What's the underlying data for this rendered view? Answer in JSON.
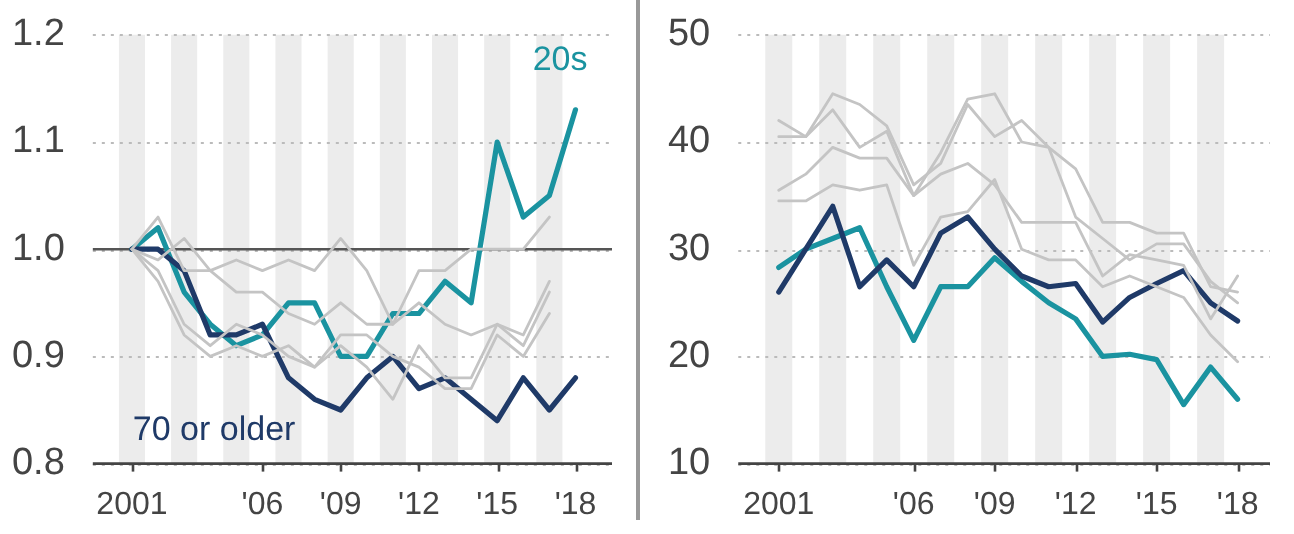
{
  "chart_data": [
    {
      "type": "line",
      "x": [
        2001,
        2002,
        2003,
        2004,
        2005,
        2006,
        2007,
        2008,
        2009,
        2010,
        2011,
        2012,
        2013,
        2014,
        2015,
        2016,
        2017,
        2018
      ],
      "series": [
        {
          "color": "#c4c4c4",
          "values": [
            1.0,
            1.03,
            0.98,
            0.98,
            0.99,
            0.98,
            0.99,
            0.98,
            1.01,
            0.98,
            0.93,
            0.98,
            0.98,
            1.0,
            1.0,
            1.0,
            1.03,
            null
          ]
        },
        {
          "color": "#c4c4c4",
          "values": [
            1.0,
            0.99,
            1.01,
            0.98,
            0.96,
            0.96,
            0.94,
            0.93,
            0.95,
            0.93,
            0.93,
            0.95,
            0.93,
            0.92,
            0.93,
            0.92,
            0.97,
            null
          ]
        },
        {
          "color": "#c4c4c4",
          "values": [
            1.0,
            0.98,
            0.93,
            0.91,
            0.93,
            0.92,
            0.9,
            0.89,
            0.91,
            0.89,
            0.86,
            0.91,
            0.88,
            0.88,
            0.93,
            0.91,
            0.96,
            null
          ]
        },
        {
          "color": "#c4c4c4",
          "values": [
            1.0,
            0.97,
            0.92,
            0.9,
            0.91,
            0.9,
            0.91,
            0.89,
            0.92,
            0.92,
            0.9,
            0.89,
            0.87,
            0.87,
            0.92,
            0.9,
            0.94,
            null
          ]
        },
        {
          "name": "70 or older",
          "color": "#1f3a68",
          "values": [
            1.0,
            1.0,
            0.98,
            0.92,
            0.92,
            0.93,
            0.88,
            0.86,
            0.85,
            0.88,
            0.9,
            0.87,
            0.88,
            0.86,
            0.84,
            0.88,
            0.85,
            0.88
          ]
        },
        {
          "name": "20s",
          "color": "#1a93a0",
          "values": [
            1.0,
            1.02,
            0.96,
            0.93,
            0.91,
            0.92,
            0.95,
            0.95,
            0.9,
            0.9,
            0.94,
            0.94,
            0.97,
            0.95,
            1.1,
            1.03,
            1.05,
            1.13
          ]
        }
      ],
      "xlim": [
        1999.5,
        2019.4
      ],
      "xticks": [
        {
          "value": 2001,
          "label": "2001"
        },
        {
          "value": 2006,
          "label": "'06"
        },
        {
          "value": 2009,
          "label": "'09"
        },
        {
          "value": 2012,
          "label": "'12"
        },
        {
          "value": 2015,
          "label": "'15"
        },
        {
          "value": 2018,
          "label": "'18"
        }
      ],
      "ylim": [
        0.8,
        1.2
      ],
      "yticks": [
        {
          "value": 0.8,
          "label": "0.8"
        },
        {
          "value": 0.9,
          "label": "0.9"
        },
        {
          "value": 1.0,
          "label": "1.0"
        },
        {
          "value": 1.1,
          "label": "1.1"
        },
        {
          "value": 1.2,
          "label": "1.2"
        }
      ],
      "ref_lines": [
        {
          "axis": "y",
          "value": 1.0,
          "color": "#555555"
        }
      ],
      "bands": [
        {
          "axis": "x",
          "from": 2000.5,
          "to": 2001.5,
          "color": "#ececec"
        },
        {
          "axis": "x",
          "from": 2002.5,
          "to": 2003.5,
          "color": "#ececec"
        },
        {
          "axis": "x",
          "from": 2004.5,
          "to": 2005.5,
          "color": "#ececec"
        },
        {
          "axis": "x",
          "from": 2006.5,
          "to": 2007.5,
          "color": "#ececec"
        },
        {
          "axis": "x",
          "from": 2008.5,
          "to": 2009.5,
          "color": "#ececec"
        },
        {
          "axis": "x",
          "from": 2010.5,
          "to": 2011.5,
          "color": "#ececec"
        },
        {
          "axis": "x",
          "from": 2012.5,
          "to": 2013.5,
          "color": "#ececec"
        },
        {
          "axis": "x",
          "from": 2014.5,
          "to": 2015.5,
          "color": "#ececec"
        },
        {
          "axis": "x",
          "from": 2016.5,
          "to": 2017.5,
          "color": "#ececec"
        }
      ],
      "grid": "y",
      "legend": false,
      "marker": "none",
      "line_style": "solid"
    },
    {
      "type": "line",
      "x": [
        2001,
        2002,
        2003,
        2004,
        2005,
        2006,
        2007,
        2008,
        2009,
        2010,
        2011,
        2012,
        2013,
        2014,
        2015,
        2016,
        2017,
        2018
      ],
      "series": [
        {
          "color": "#c4c4c4",
          "values": [
            42,
            40.5,
            44.5,
            43.5,
            41.5,
            36,
            38,
            43.5,
            40.5,
            42,
            39.5,
            37.5,
            32.5,
            32.5,
            31.5,
            31.5,
            26.5,
            26
          ]
        },
        {
          "color": "#c4c4c4",
          "values": [
            40.5,
            40.5,
            43,
            39.5,
            41,
            35,
            39,
            44,
            44.5,
            40,
            39.5,
            33,
            31,
            29,
            30.5,
            30.5,
            27,
            25
          ]
        },
        {
          "color": "#c4c4c4",
          "values": [
            35.5,
            37,
            39.5,
            38.5,
            38.5,
            35,
            37,
            38,
            36,
            32.5,
            32.5,
            32.5,
            27.5,
            29.5,
            29,
            28.5,
            23.5,
            27.5
          ]
        },
        {
          "color": "#c4c4c4",
          "values": [
            34.5,
            34.5,
            36,
            35.5,
            36,
            28.5,
            33,
            33.5,
            36.5,
            30,
            29,
            29,
            26.5,
            27.5,
            26.5,
            25.5,
            22,
            19.5
          ]
        },
        {
          "color": "#1f3a68",
          "values": [
            26,
            30,
            34,
            26.5,
            29,
            26.5,
            31.5,
            33,
            30,
            27.5,
            26.5,
            26.8,
            23.2,
            25.5,
            26.8,
            28,
            25,
            23.3
          ]
        },
        {
          "color": "#1a93a0",
          "values": [
            28.3,
            30,
            31,
            32,
            26.5,
            21.5,
            26.5,
            26.5,
            29.2,
            27,
            25,
            23.5,
            20,
            20.2,
            19.7,
            15.5,
            19,
            16
          ]
        }
      ],
      "xlim": [
        1999.5,
        2019.2
      ],
      "xticks": [
        {
          "value": 2001,
          "label": "2001"
        },
        {
          "value": 2006,
          "label": "'06"
        },
        {
          "value": 2009,
          "label": "'09"
        },
        {
          "value": 2012,
          "label": "'12"
        },
        {
          "value": 2015,
          "label": "'15"
        },
        {
          "value": 2018,
          "label": "'18"
        }
      ],
      "ylim": [
        10,
        50
      ],
      "yticks": [
        10,
        20,
        30,
        40,
        50
      ],
      "bands": [
        {
          "axis": "x",
          "from": 2000.5,
          "to": 2001.5,
          "color": "#ececec"
        },
        {
          "axis": "x",
          "from": 2002.5,
          "to": 2003.5,
          "color": "#ececec"
        },
        {
          "axis": "x",
          "from": 2004.5,
          "to": 2005.5,
          "color": "#ececec"
        },
        {
          "axis": "x",
          "from": 2006.5,
          "to": 2007.5,
          "color": "#ececec"
        },
        {
          "axis": "x",
          "from": 2008.5,
          "to": 2009.5,
          "color": "#ececec"
        },
        {
          "axis": "x",
          "from": 2010.5,
          "to": 2011.5,
          "color": "#ececec"
        },
        {
          "axis": "x",
          "from": 2012.5,
          "to": 2013.5,
          "color": "#ececec"
        },
        {
          "axis": "x",
          "from": 2014.5,
          "to": 2015.5,
          "color": "#ececec"
        },
        {
          "axis": "x",
          "from": 2016.5,
          "to": 2017.5,
          "color": "#ececec"
        }
      ],
      "grid": "y",
      "legend": false,
      "marker": "none",
      "line_style": "solid"
    }
  ]
}
